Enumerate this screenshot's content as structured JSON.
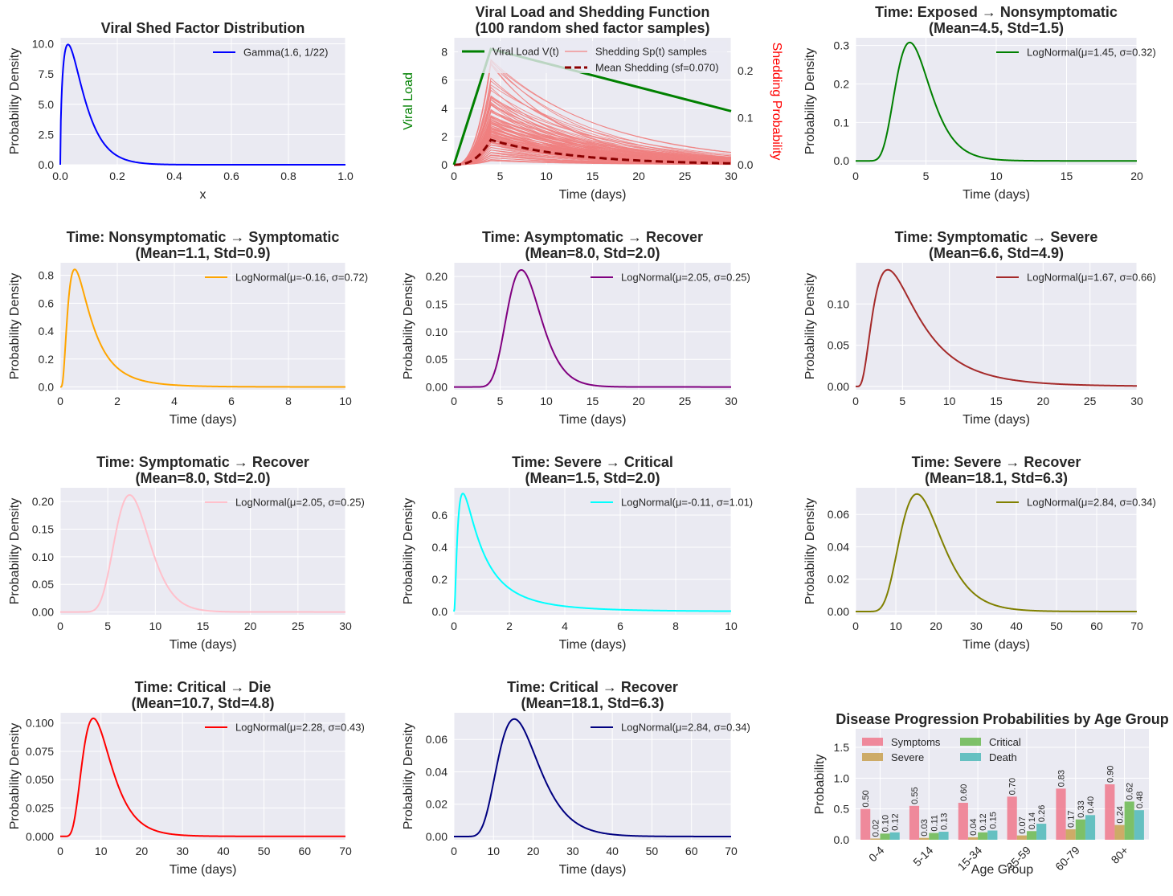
{
  "chart_data": [
    {
      "type": "line",
      "title": "Viral Shed Factor Distribution",
      "xlabel": "x",
      "ylabel": "Probability Density",
      "xlim": [
        0,
        1
      ],
      "ylim": [
        0,
        10.5
      ],
      "xticks": [
        0,
        0.2,
        0.4,
        0.6,
        0.8,
        1.0
      ],
      "xtick_labels": [
        "0.0",
        "0.2",
        "0.4",
        "0.6",
        "0.8",
        "1.0"
      ],
      "yticks": [
        0,
        2.5,
        5,
        7.5,
        10
      ],
      "ytick_labels": [
        "0.0",
        "2.5",
        "5.0",
        "7.5",
        "10.0"
      ],
      "series": [
        {
          "name": "Gamma(1.6, 1/22)",
          "dist": "gamma",
          "shape": 1.6,
          "scale": 0.04545,
          "color": "#0000ff"
        }
      ],
      "legend": "top-right"
    },
    {
      "type": "line",
      "title": "Viral Load and Shedding Function\n(100 random shed factor samples)",
      "xlabel": "Time (days)",
      "ylabel": "Viral Load",
      "ylabel_color": "#008000",
      "y2label": "Shedding Probability",
      "y2label_color": "#ff0000",
      "xlim": [
        0,
        30
      ],
      "ylim": [
        0,
        9
      ],
      "y2lim": [
        0,
        0.27
      ],
      "xticks": [
        0,
        5,
        10,
        15,
        20,
        25,
        30
      ],
      "xtick_labels": [
        "0",
        "5",
        "10",
        "15",
        "20",
        "25",
        "30"
      ],
      "yticks": [
        0,
        2,
        4,
        6,
        8
      ],
      "ytick_labels": [
        "0",
        "2",
        "4",
        "6",
        "8"
      ],
      "y2ticks": [
        0,
        0.1,
        0.2
      ],
      "y2tick_labels": [
        "0.0",
        "0.1",
        "0.2"
      ],
      "viral_load": {
        "name": "Viral Load V(t)",
        "x": [
          0,
          4,
          30
        ],
        "y": [
          0,
          8.2,
          3.8
        ],
        "color": "#008000"
      },
      "shedding_samples": {
        "name": "Shedding Sp(t) samples",
        "count": 100,
        "color": "#f08080",
        "peak_day": 4,
        "peak_values": [
          0.235,
          0.22,
          0.205,
          0.19,
          0.165,
          0.15,
          0.145,
          0.14,
          0.135,
          0.13,
          0.125,
          0.12,
          0.115,
          0.11,
          0.105,
          0.1,
          0.098,
          0.095,
          0.092,
          0.09,
          0.088,
          0.085,
          0.082,
          0.08,
          0.078,
          0.076,
          0.074,
          0.072,
          0.07,
          0.068,
          0.066,
          0.064,
          0.062,
          0.06,
          0.058,
          0.056,
          0.054,
          0.052,
          0.05,
          0.048,
          0.046,
          0.044,
          0.042,
          0.04,
          0.038,
          0.036,
          0.034,
          0.032,
          0.03,
          0.028,
          0.026,
          0.024,
          0.022,
          0.02,
          0.018,
          0.016,
          0.014,
          0.012,
          0.01,
          0.008
        ]
      },
      "mean_shedding": {
        "name": "Mean Shedding (sf=0.070)",
        "peak": 0.053,
        "end": 0.003,
        "color": "#8b0000"
      },
      "legend": "top-right"
    },
    {
      "type": "line",
      "title": "Time: Exposed → Nonsymptomatic\n(Mean=4.5, Std=1.5)",
      "xlabel": "Time (days)",
      "ylabel": "Probability Density",
      "xlim": [
        0,
        20
      ],
      "ylim": [
        -0.01,
        0.32
      ],
      "xticks": [
        0,
        5,
        10,
        15,
        20
      ],
      "xtick_labels": [
        "0",
        "5",
        "10",
        "15",
        "20"
      ],
      "yticks": [
        0,
        0.1,
        0.2,
        0.3
      ],
      "ytick_labels": [
        "0.0",
        "0.1",
        "0.2",
        "0.3"
      ],
      "series": [
        {
          "name": "LogNormal(μ=1.45, σ=0.32)",
          "dist": "lognormal",
          "mu": 1.45,
          "sigma": 0.32,
          "color": "#008000"
        }
      ],
      "legend": "top-right"
    },
    {
      "type": "line",
      "title": "Time: Nonsymptomatic → Symptomatic\n(Mean=1.1, Std=0.9)",
      "xlabel": "Time (days)",
      "ylabel": "Probability Density",
      "xlim": [
        0,
        10
      ],
      "ylim": [
        -0.02,
        0.89
      ],
      "xticks": [
        0,
        2,
        4,
        6,
        8,
        10
      ],
      "xtick_labels": [
        "0",
        "2",
        "4",
        "6",
        "8",
        "10"
      ],
      "yticks": [
        0,
        0.2,
        0.4,
        0.6,
        0.8
      ],
      "ytick_labels": [
        "0.0",
        "0.2",
        "0.4",
        "0.6",
        "0.8"
      ],
      "series": [
        {
          "name": "LogNormal(μ=-0.16, σ=0.72)",
          "dist": "lognormal",
          "mu": -0.16,
          "sigma": 0.72,
          "color": "#ffa500"
        }
      ],
      "legend": "top-right"
    },
    {
      "type": "line",
      "title": "Time: Asymptomatic → Recover\n(Mean=8.0, Std=2.0)",
      "xlabel": "Time (days)",
      "ylabel": "Probability Density",
      "xlim": [
        0,
        30
      ],
      "ylim": [
        -0.005,
        0.225
      ],
      "xticks": [
        0,
        5,
        10,
        15,
        20,
        25,
        30
      ],
      "xtick_labels": [
        "0",
        "5",
        "10",
        "15",
        "20",
        "25",
        "30"
      ],
      "yticks": [
        0,
        0.05,
        0.1,
        0.15,
        0.2
      ],
      "ytick_labels": [
        "0.00",
        "0.05",
        "0.10",
        "0.15",
        "0.20"
      ],
      "series": [
        {
          "name": "LogNormal(μ=2.05, σ=0.25)",
          "dist": "lognormal",
          "mu": 2.05,
          "sigma": 0.25,
          "color": "#800080"
        }
      ],
      "legend": "top-right"
    },
    {
      "type": "line",
      "title": "Time: Symptomatic → Severe\n(Mean=6.6, Std=4.9)",
      "xlabel": "Time (days)",
      "ylabel": "Probability Density",
      "xlim": [
        0,
        30
      ],
      "ylim": [
        -0.004,
        0.15
      ],
      "xticks": [
        0,
        5,
        10,
        15,
        20,
        25,
        30
      ],
      "xtick_labels": [
        "0",
        "5",
        "10",
        "15",
        "20",
        "25",
        "30"
      ],
      "yticks": [
        0,
        0.05,
        0.1
      ],
      "ytick_labels": [
        "0.00",
        "0.05",
        "0.10"
      ],
      "series": [
        {
          "name": "LogNormal(μ=1.67, σ=0.66)",
          "dist": "lognormal",
          "mu": 1.67,
          "sigma": 0.66,
          "color": "#a52a2a"
        }
      ],
      "legend": "top-right"
    },
    {
      "type": "line",
      "title": "Time: Symptomatic → Recover\n(Mean=8.0, Std=2.0)",
      "xlabel": "Time (days)",
      "ylabel": "Probability Density",
      "xlim": [
        0,
        30
      ],
      "ylim": [
        -0.005,
        0.225
      ],
      "xticks": [
        0,
        5,
        10,
        15,
        20,
        25,
        30
      ],
      "xtick_labels": [
        "0",
        "5",
        "10",
        "15",
        "20",
        "25",
        "30"
      ],
      "yticks": [
        0,
        0.05,
        0.1,
        0.15,
        0.2
      ],
      "ytick_labels": [
        "0.00",
        "0.05",
        "0.10",
        "0.15",
        "0.20"
      ],
      "series": [
        {
          "name": "LogNormal(μ=2.05, σ=0.25)",
          "dist": "lognormal",
          "mu": 2.05,
          "sigma": 0.25,
          "color": "#ffc0cb"
        }
      ],
      "legend": "top-right"
    },
    {
      "type": "line",
      "title": "Time: Severe → Critical\n(Mean=1.5, Std=2.0)",
      "xlabel": "Time (days)",
      "ylabel": "Probability Density",
      "xlim": [
        0,
        10
      ],
      "ylim": [
        -0.02,
        0.77
      ],
      "xticks": [
        0,
        2,
        4,
        6,
        8,
        10
      ],
      "xtick_labels": [
        "0",
        "2",
        "4",
        "6",
        "8",
        "10"
      ],
      "yticks": [
        0,
        0.2,
        0.4,
        0.6
      ],
      "ytick_labels": [
        "0.0",
        "0.2",
        "0.4",
        "0.6"
      ],
      "series": [
        {
          "name": "LogNormal(μ=-0.11, σ=1.01)",
          "dist": "lognormal",
          "mu": -0.11,
          "sigma": 1.01,
          "color": "#00ffff"
        }
      ],
      "legend": "top-right"
    },
    {
      "type": "line",
      "title": "Time: Severe → Recover\n(Mean=18.1, Std=6.3)",
      "xlabel": "Time (days)",
      "ylabel": "Probability Density",
      "xlim": [
        0,
        70
      ],
      "ylim": [
        -0.002,
        0.0765
      ],
      "xticks": [
        0,
        10,
        20,
        30,
        40,
        50,
        60,
        70
      ],
      "xtick_labels": [
        "0",
        "10",
        "20",
        "30",
        "40",
        "50",
        "60",
        "70"
      ],
      "yticks": [
        0,
        0.02,
        0.04,
        0.06
      ],
      "ytick_labels": [
        "0.00",
        "0.02",
        "0.04",
        "0.06"
      ],
      "series": [
        {
          "name": "LogNormal(μ=2.84, σ=0.34)",
          "dist": "lognormal",
          "mu": 2.84,
          "sigma": 0.34,
          "color": "#808000"
        }
      ],
      "legend": "top-right"
    },
    {
      "type": "line",
      "title": "Time: Critical → Die\n(Mean=10.7, Std=4.8)",
      "xlabel": "Time (days)",
      "ylabel": "Probability Density",
      "xlim": [
        0,
        70
      ],
      "ylim": [
        -0.003,
        0.109
      ],
      "xticks": [
        0,
        10,
        20,
        30,
        40,
        50,
        60,
        70
      ],
      "xtick_labels": [
        "0",
        "10",
        "20",
        "30",
        "40",
        "50",
        "60",
        "70"
      ],
      "yticks": [
        0,
        0.025,
        0.05,
        0.075,
        0.1
      ],
      "ytick_labels": [
        "0.000",
        "0.025",
        "0.050",
        "0.075",
        "0.100"
      ],
      "series": [
        {
          "name": "LogNormal(μ=2.28, σ=0.43)",
          "dist": "lognormal",
          "mu": 2.28,
          "sigma": 0.43,
          "color": "#ff0000"
        }
      ],
      "legend": "top-right"
    },
    {
      "type": "line",
      "title": "Time: Critical → Recover\n(Mean=18.1, Std=6.3)",
      "xlabel": "Time (days)",
      "ylabel": "Probability Density",
      "xlim": [
        0,
        70
      ],
      "ylim": [
        -0.002,
        0.0765
      ],
      "xticks": [
        0,
        10,
        20,
        30,
        40,
        50,
        60,
        70
      ],
      "xtick_labels": [
        "0",
        "10",
        "20",
        "30",
        "40",
        "50",
        "60",
        "70"
      ],
      "yticks": [
        0,
        0.02,
        0.04,
        0.06
      ],
      "ytick_labels": [
        "0.00",
        "0.02",
        "0.04",
        "0.06"
      ],
      "series": [
        {
          "name": "LogNormal(μ=2.84, σ=0.34)",
          "dist": "lognormal",
          "mu": 2.84,
          "sigma": 0.34,
          "color": "#000080"
        }
      ],
      "legend": "top-right"
    },
    {
      "type": "bar",
      "title": "Disease Progression Probabilities by Age Group",
      "xlabel": "Age Group",
      "ylabel": "Probability",
      "ylim": [
        0,
        1.8
      ],
      "yticks": [
        0,
        0.5,
        1.0,
        1.5
      ],
      "ytick_labels": [
        "0.0",
        "0.5",
        "1.0",
        "1.5"
      ],
      "categories": [
        "0-4",
        "5-14",
        "15-34",
        "35-59",
        "60-79",
        "80+"
      ],
      "series": [
        {
          "name": "Symptoms",
          "color": "#f0788c",
          "values": [
            0.5,
            0.55,
            0.6,
            0.7,
            0.83,
            0.9
          ],
          "labels": [
            "0.50",
            "0.55",
            "0.60",
            "0.70",
            "0.83",
            "0.90"
          ]
        },
        {
          "name": "Severe",
          "color": "#c8a04f",
          "values": [
            0.02,
            0.03,
            0.04,
            0.07,
            0.17,
            0.24
          ],
          "labels": [
            "0.02",
            "0.03",
            "0.04",
            "0.07",
            "0.17",
            "0.24"
          ]
        },
        {
          "name": "Critical",
          "color": "#6ab850",
          "values": [
            0.1,
            0.11,
            0.12,
            0.14,
            0.33,
            0.62
          ],
          "labels": [
            "0.10",
            "0.11",
            "0.12",
            "0.14",
            "0.33",
            "0.62"
          ]
        },
        {
          "name": "Death",
          "color": "#4db8b8",
          "values": [
            0.12,
            0.13,
            0.15,
            0.26,
            0.4,
            0.48
          ],
          "labels": [
            "0.12",
            "0.13",
            "0.15",
            "0.26",
            "0.40",
            "0.48"
          ]
        }
      ],
      "legend": "top-left"
    }
  ]
}
